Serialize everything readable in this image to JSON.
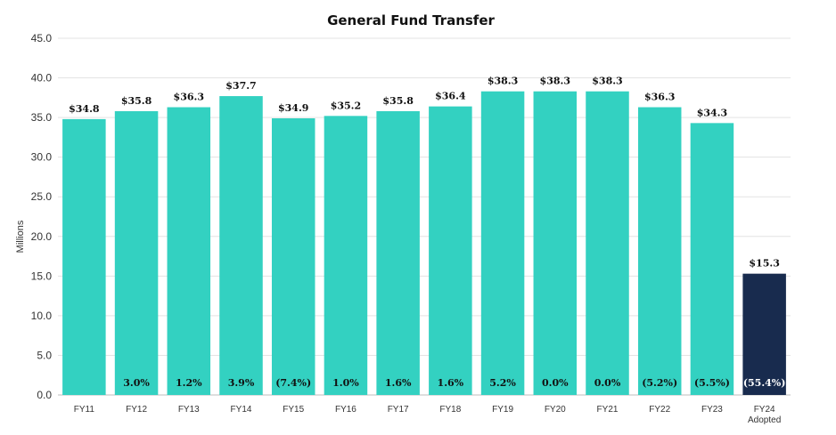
{
  "chart_data": {
    "type": "bar",
    "title": "General Fund Transfer",
    "xlabel": "",
    "ylabel": "Millions",
    "ylim": [
      0,
      45
    ],
    "yticks": [
      "0.0",
      "5.0",
      "10.0",
      "15.0",
      "20.0",
      "25.0",
      "30.0",
      "35.0",
      "40.0",
      "45.0"
    ],
    "grid": true,
    "categories": [
      [
        "FY11"
      ],
      [
        "FY12"
      ],
      [
        "FY13"
      ],
      [
        "FY14"
      ],
      [
        "FY15"
      ],
      [
        "FY16"
      ],
      [
        "FY17"
      ],
      [
        "FY18"
      ],
      [
        "FY19"
      ],
      [
        "FY20"
      ],
      [
        "FY21"
      ],
      [
        "FY22"
      ],
      [
        "FY23"
      ],
      [
        "FY24",
        "Adopted"
      ]
    ],
    "values": [
      34.8,
      35.8,
      36.3,
      37.7,
      34.9,
      35.2,
      35.8,
      36.4,
      38.3,
      38.3,
      38.3,
      36.3,
      34.3,
      15.3
    ],
    "value_labels": [
      "$34.8",
      "$35.8",
      "$36.3",
      "$37.7",
      "$34.9",
      "$35.2",
      "$35.8",
      "$36.4",
      "$38.3",
      "$38.3",
      "$38.3",
      "$36.3",
      "$34.3",
      "$15.3"
    ],
    "pct_change_labels": [
      "",
      "3.0%",
      "1.2%",
      "3.9%",
      "(7.4%)",
      "1.0%",
      "1.6%",
      "1.6%",
      "5.2%",
      "0.0%",
      "0.0%",
      "(5.2%)",
      "(5.5%)",
      "(55.4%)"
    ],
    "colors": {
      "bar": "#33d1c1",
      "highlight_bar": "#182b4e",
      "pct_text": "#111111",
      "highlight_pct_text": "#ffffff"
    },
    "highlight_index": 13
  }
}
